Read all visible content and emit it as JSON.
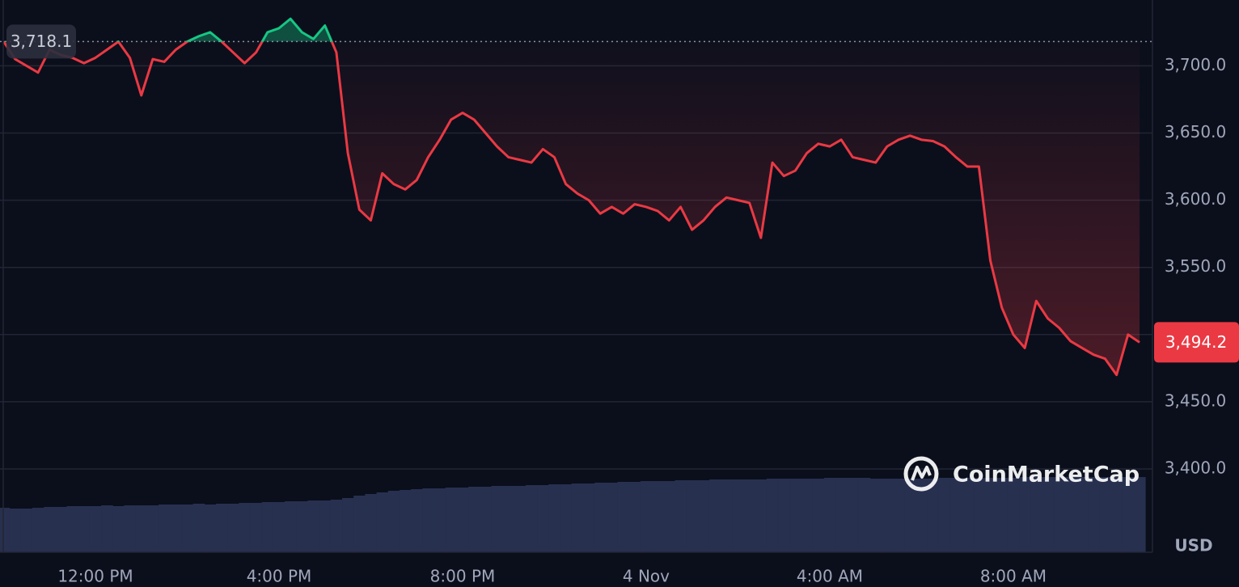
{
  "chart_data": {
    "type": "line",
    "categories": [
      null,
      null,
      null,
      null,
      null,
      null,
      null,
      null,
      "12:00 PM",
      null,
      null,
      null,
      null,
      null,
      null,
      null,
      null,
      null,
      null,
      null,
      null,
      null,
      null,
      null,
      "4:00 PM",
      null,
      null,
      null,
      null,
      null,
      null,
      null,
      null,
      null,
      null,
      null,
      null,
      null,
      null,
      null,
      "8:00 PM",
      null,
      null,
      null,
      null,
      null,
      null,
      null,
      null,
      null,
      null,
      null,
      null,
      null,
      null,
      null,
      "4 Nov",
      null,
      null,
      null,
      null,
      null,
      null,
      null,
      null,
      null,
      null,
      null,
      null,
      null,
      null,
      null,
      "4:00 AM",
      null,
      null,
      null,
      null,
      null,
      null,
      null,
      null,
      null,
      null,
      null,
      null,
      null,
      null,
      null,
      "8:00 AM",
      null,
      null,
      null,
      null,
      null,
      null,
      null,
      null,
      null,
      null,
      null
    ],
    "values": [
      3718.1,
      3705,
      3700,
      3695,
      3712,
      3708,
      3706,
      3702,
      3706,
      3712,
      3718,
      3706,
      3678,
      3705,
      3703,
      3712,
      3718,
      3722,
      3725,
      3718,
      3710,
      3702,
      3710,
      3725,
      3728,
      3735,
      3725,
      3720,
      3730,
      3710,
      3635,
      3593,
      3585,
      3620,
      3612,
      3608,
      3615,
      3632,
      3645,
      3660,
      3665,
      3660,
      3650,
      3640,
      3632,
      3630,
      3628,
      3638,
      3632,
      3612,
      3605,
      3600,
      3590,
      3595,
      3590,
      3597,
      3595,
      3592,
      3585,
      3595,
      3578,
      3585,
      3595,
      3602,
      3600,
      3598,
      3572,
      3628,
      3618,
      3622,
      3635,
      3642,
      3640,
      3645,
      3632,
      3630,
      3628,
      3640,
      3645,
      3648,
      3645,
      3644,
      3640,
      3632,
      3625,
      3625,
      3555,
      3520,
      3500,
      3490,
      3525,
      3512,
      3505,
      3495,
      3490,
      3485,
      3482,
      3470,
      3500,
      3494.2
    ],
    "volume": [
      55,
      54,
      54,
      55,
      56,
      56,
      57,
      57,
      57,
      58,
      57,
      58,
      58,
      58,
      59,
      59,
      59,
      60,
      59,
      60,
      60,
      61,
      61,
      62,
      62,
      63,
      63,
      64,
      64,
      65,
      67,
      70,
      72,
      74,
      76,
      77,
      78,
      79,
      79,
      80,
      80,
      81,
      81,
      82,
      82,
      82,
      83,
      83,
      84,
      84,
      85,
      85,
      86,
      86,
      87,
      87,
      88,
      88,
      88,
      89,
      89,
      89,
      90,
      90,
      90,
      90,
      90,
      91,
      91,
      91,
      91,
      91,
      92,
      92,
      92,
      92,
      91,
      91,
      91,
      91,
      91,
      91,
      92,
      92,
      92,
      92,
      92,
      92,
      92,
      93,
      93,
      93,
      93,
      93,
      93,
      93,
      93,
      93,
      93,
      93
    ],
    "up_color": "#16c784",
    "down_color": "#ea3943",
    "volume_color": "#27304f",
    "baseline": {
      "value": 3718.1,
      "label": "3,718.1"
    },
    "current_price": {
      "value": 3494.2,
      "label": "3,494.2"
    },
    "ylim": [
      3338,
      3749
    ],
    "yticks": [
      {
        "value": 3400,
        "label": "3,400.0"
      },
      {
        "value": 3450,
        "label": "3,450.0"
      },
      {
        "value": 3500,
        "label": "3,500.0"
      },
      {
        "value": 3550,
        "label": "3,550.0"
      },
      {
        "value": 3600,
        "label": "3,600.0"
      },
      {
        "value": 3650,
        "label": "3,650.0"
      },
      {
        "value": 3700,
        "label": "3,700.0"
      }
    ],
    "y_axis_label": "USD",
    "watermark": "CoinMarketCap",
    "grid": true
  }
}
